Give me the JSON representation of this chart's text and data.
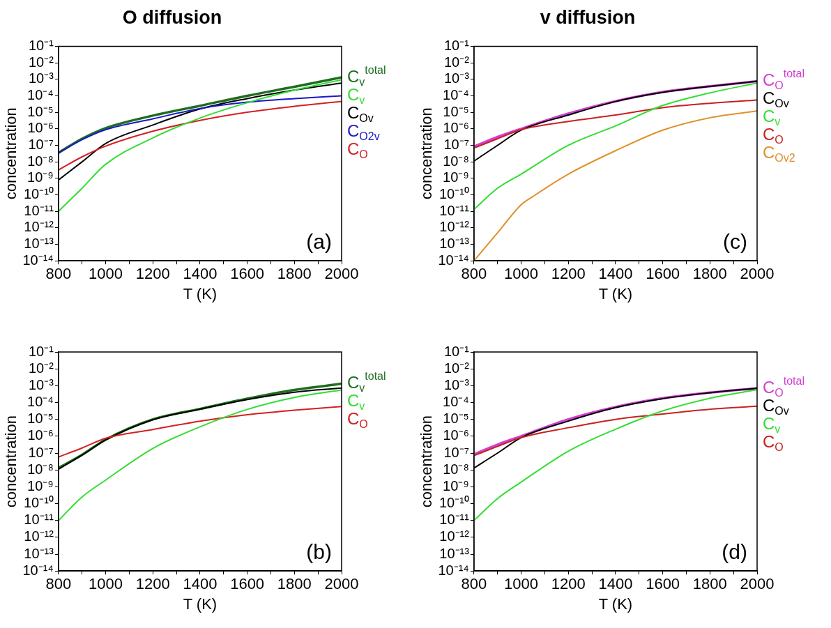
{
  "chart_data": [
    {
      "type": "line",
      "title": "O diffusion",
      "xlabel": "T (K)",
      "ylabel": "concentration",
      "log": "y",
      "xlim": [
        800,
        2000
      ],
      "xticks": [
        800,
        {
          "value": 900,
          "label": null
        },
        1000,
        {
          "value": 1100,
          "label": null
        },
        1200,
        {
          "value": 1300,
          "label": null
        },
        1400,
        {
          "value": 1500,
          "label": null
        },
        1600,
        {
          "value": 1700,
          "label": null
        },
        1800,
        {
          "value": 1900,
          "label": null
        },
        2000
      ],
      "ylim": [
        1e-14,
        0.1
      ],
      "yticks": [
        {
          "value": 1e-14,
          "label": "10⁻¹⁴"
        },
        {
          "value": 1e-13,
          "label": "10⁻¹³"
        },
        {
          "value": 1e-12,
          "label": "10⁻¹²"
        },
        {
          "value": 1e-11,
          "label": "10⁻¹¹"
        },
        {
          "value": 1e-10,
          "label": "10⁻¹⁰"
        },
        {
          "value": 1e-09,
          "label": "10⁻⁹"
        },
        {
          "value": 1e-08,
          "label": "10⁻⁸"
        },
        {
          "value": 1e-07,
          "label": "10⁻⁷"
        },
        {
          "value": 1e-06,
          "label": "10⁻⁶"
        },
        {
          "value": 1e-05,
          "label": "10⁻⁵"
        },
        {
          "value": 0.0001,
          "label": "10⁻⁴"
        },
        {
          "value": 0.001,
          "label": "10⁻³"
        },
        {
          "value": 0.01,
          "label": "10⁻²"
        },
        {
          "value": 0.1,
          "label": "10⁻¹"
        }
      ],
      "x": [
        800,
        900,
        1000,
        1200,
        1400,
        1600,
        1800,
        2000
      ],
      "annotations": [
        "(a)"
      ],
      "series": [
        {
          "name": "C$_{v}$$^{total}$",
          "color": "#1e6e1e",
          "values": [
            3.5e-08,
            2.5e-07,
            1.1e-06,
            6.3e-06,
            2.5e-05,
            0.0001,
            0.00035,
            0.0013
          ]
        },
        {
          "name": "C$_{Ov}$",
          "color": "#000000",
          "values": [
            7.9e-10,
            1e-08,
            1.3e-07,
            1.7e-06,
            1.6e-05,
            6.8e-05,
            0.00022,
            0.00058
          ]
        },
        {
          "name": "C$_{O2v}$",
          "color": "#1818c8",
          "values": [
            3.5e-08,
            2.2e-07,
            8.9e-07,
            4e-06,
            1.7e-05,
            4.1e-05,
            6.8e-05,
            0.0001
          ]
        },
        {
          "name": "C$_{O}$",
          "color": "#d42020",
          "values": [
            3.2e-09,
            2e-08,
            8.9e-08,
            7.1e-07,
            3.2e-06,
            1e-05,
            2.3e-05,
            4.6e-05
          ]
        },
        {
          "name": "C$_{v}$",
          "color": "#33dd33",
          "values": [
            1e-11,
            2.5e-10,
            7.1e-09,
            2.8e-07,
            4.5e-06,
            3.8e-05,
            0.00022,
            0.00093
          ]
        }
      ]
    },
    {
      "type": "line",
      "title": "v diffusion",
      "xlabel": "T (K)",
      "ylabel": "concentration",
      "log": "y",
      "xlim": [
        800,
        2000
      ],
      "xticks": [
        800,
        {
          "value": 900,
          "label": null
        },
        1000,
        {
          "value": 1100,
          "label": null
        },
        1200,
        {
          "value": 1300,
          "label": null
        },
        1400,
        {
          "value": 1500,
          "label": null
        },
        1600,
        {
          "value": 1700,
          "label": null
        },
        1800,
        {
          "value": 1900,
          "label": null
        },
        2000
      ],
      "ylim": [
        1e-14,
        0.1
      ],
      "yticks": [
        {
          "value": 1e-14,
          "label": "10⁻¹⁴"
        },
        {
          "value": 1e-13,
          "label": "10⁻¹³"
        },
        {
          "value": 1e-12,
          "label": "10⁻¹²"
        },
        {
          "value": 1e-11,
          "label": "10⁻¹¹"
        },
        {
          "value": 1e-10,
          "label": "10⁻¹⁰"
        },
        {
          "value": 1e-09,
          "label": "10⁻⁹"
        },
        {
          "value": 1e-08,
          "label": "10⁻⁸"
        },
        {
          "value": 1e-07,
          "label": "10⁻⁷"
        },
        {
          "value": 1e-06,
          "label": "10⁻⁶"
        },
        {
          "value": 1e-05,
          "label": "10⁻⁵"
        },
        {
          "value": 0.0001,
          "label": "10⁻⁴"
        },
        {
          "value": 0.001,
          "label": "10⁻³"
        },
        {
          "value": 0.01,
          "label": "10⁻²"
        },
        {
          "value": 0.1,
          "label": "10⁻¹"
        }
      ],
      "x": [
        800,
        900,
        1000,
        1200,
        1400,
        1600,
        1800,
        2000
      ],
      "annotations": [
        "(c)"
      ],
      "series": [
        {
          "name": "C$_{O}$$^{total}$",
          "color": "#d040d0",
          "values": [
            8.3e-08,
            3.2e-07,
            1e-06,
            8.3e-06,
            4.7e-05,
            0.00017,
            0.00038,
            0.00076
          ]
        },
        {
          "name": "C$_{Ov}$",
          "color": "#000000",
          "values": [
            1.1e-08,
            1e-07,
            8.3e-07,
            6.8e-06,
            4.5e-05,
            0.00016,
            0.00037,
            0.00076
          ]
        },
        {
          "name": "C$_{O}$",
          "color": "#c82020",
          "values": [
            6.8e-08,
            2.5e-07,
            8.9e-07,
            2.8e-06,
            6.8e-06,
            1.9e-05,
            3.5e-05,
            5.6e-05
          ]
        },
        {
          "name": "C$_{v}$",
          "color": "#33dd33",
          "values": [
            1.3e-11,
            2.5e-10,
            1.8e-09,
            1e-07,
            1.5e-06,
            2.6e-05,
            0.00015,
            0.0006
          ]
        },
        {
          "name": "C$_{Ov2}$",
          "color": "#e0902a",
          "x": [
            800,
            900,
            1000,
            1050,
            1200,
            1400,
            1600,
            1800,
            2000
          ],
          "values": [
            1e-14,
            5e-13,
            2.5e-11,
            7.9e-11,
            1.8e-09,
            4.7e-08,
            8.3e-07,
            4.7e-06,
            1.2e-05
          ]
        }
      ]
    },
    {
      "type": "line",
      "xlabel": "T (K)",
      "ylabel": "concentration",
      "log": "y",
      "xlim": [
        800,
        2000
      ],
      "xticks": [
        800,
        {
          "value": 900,
          "label": null
        },
        1000,
        {
          "value": 1100,
          "label": null
        },
        1200,
        {
          "value": 1300,
          "label": null
        },
        1400,
        {
          "value": 1500,
          "label": null
        },
        1600,
        {
          "value": 1700,
          "label": null
        },
        1800,
        {
          "value": 1900,
          "label": null
        },
        2000
      ],
      "ylim": [
        1e-14,
        0.1
      ],
      "yticks": [
        {
          "value": 1e-14,
          "label": "10⁻¹⁴"
        },
        {
          "value": 1e-13,
          "label": "10⁻¹³"
        },
        {
          "value": 1e-12,
          "label": "10⁻¹²"
        },
        {
          "value": 1e-11,
          "label": "10⁻¹¹"
        },
        {
          "value": 1e-10,
          "label": "10⁻¹⁰"
        },
        {
          "value": 1e-09,
          "label": "10⁻⁹"
        },
        {
          "value": 1e-08,
          "label": "10⁻⁸"
        },
        {
          "value": 1e-07,
          "label": "10⁻⁷"
        },
        {
          "value": 1e-06,
          "label": "10⁻⁶"
        },
        {
          "value": 1e-05,
          "label": "10⁻⁵"
        },
        {
          "value": 0.0001,
          "label": "10⁻⁴"
        },
        {
          "value": 0.001,
          "label": "10⁻³"
        },
        {
          "value": 0.01,
          "label": "10⁻²"
        },
        {
          "value": 0.1,
          "label": "10⁻¹"
        }
      ],
      "x": [
        800,
        900,
        1000,
        1200,
        1400,
        1600,
        1800,
        2000
      ],
      "annotations": [
        "(b)"
      ],
      "series": [
        {
          "name": "C$_{v}$$^{total}$",
          "color": "#1e6e1e",
          "values": [
            1.3e-08,
            7.9e-08,
            6.3e-07,
            1e-05,
            4.2e-05,
            0.00017,
            0.00056,
            0.0013
          ]
        },
        {
          "color": "#000000",
          "values": [
            1.1e-08,
            7.6e-08,
            6e-07,
            9.5e-06,
            4e-05,
            0.00015,
            0.00041,
            0.00072
          ]
        },
        {
          "name": "C$_{O}$",
          "color": "#d42020",
          "values": [
            5.9e-08,
            2e-07,
            7.6e-07,
            2.5e-06,
            7.9e-06,
            1.9e-05,
            3.5e-05,
            5.8e-05
          ]
        },
        {
          "name": "C$_{v}$",
          "color": "#33dd33",
          "values": [
            1e-11,
            2.5e-10,
            2.5e-09,
            1.9e-07,
            3.6e-06,
            3.9e-05,
            0.0002,
            0.00056
          ]
        }
      ]
    },
    {
      "type": "line",
      "xlabel": "T (K)",
      "ylabel": "concentration",
      "log": "y",
      "xlim": [
        800,
        2000
      ],
      "xticks": [
        800,
        {
          "value": 900,
          "label": null
        },
        1000,
        {
          "value": 1100,
          "label": null
        },
        1200,
        {
          "value": 1300,
          "label": null
        },
        1400,
        {
          "value": 1500,
          "label": null
        },
        1600,
        {
          "value": 1700,
          "label": null
        },
        1800,
        {
          "value": 1900,
          "label": null
        },
        2000
      ],
      "ylim": [
        1e-14,
        0.1
      ],
      "yticks": [
        {
          "value": 1e-14,
          "label": "10⁻¹⁴"
        },
        {
          "value": 1e-13,
          "label": "10⁻¹³"
        },
        {
          "value": 1e-12,
          "label": "10⁻¹²"
        },
        {
          "value": 1e-11,
          "label": "10⁻¹¹"
        },
        {
          "value": 1e-10,
          "label": "10⁻¹⁰"
        },
        {
          "value": 1e-09,
          "label": "10⁻⁹"
        },
        {
          "value": 1e-08,
          "label": "10⁻⁸"
        },
        {
          "value": 1e-07,
          "label": "10⁻⁷"
        },
        {
          "value": 1e-06,
          "label": "10⁻⁶"
        },
        {
          "value": 1e-05,
          "label": "10⁻⁵"
        },
        {
          "value": 0.0001,
          "label": "10⁻⁴"
        },
        {
          "value": 0.001,
          "label": "10⁻³"
        },
        {
          "value": 0.01,
          "label": "10⁻²"
        },
        {
          "value": 0.1,
          "label": "10⁻¹"
        }
      ],
      "x": [
        800,
        900,
        1000,
        1200,
        1400,
        1600,
        1800,
        2000
      ],
      "annotations": [
        "(d)"
      ],
      "series": [
        {
          "name": "C$_{O}$$^{total}$",
          "color": "#d040d0",
          "values": [
            8.5e-08,
            3.2e-07,
            1e-06,
            1e-05,
            5.4e-05,
            0.00018,
            0.00039,
            0.00071
          ]
        },
        {
          "name": "C$_{Ov}$",
          "color": "#000000",
          "values": [
            1.3e-08,
            1e-07,
            8.3e-07,
            7.9e-06,
            5e-05,
            0.00017,
            0.00038,
            0.00071
          ]
        },
        {
          "name": "C$_{O}$",
          "color": "#c82020",
          "values": [
            7.1e-08,
            2.5e-07,
            8.3e-07,
            3.2e-06,
            1e-05,
            2.1e-05,
            4e-05,
            6e-05
          ]
        },
        {
          "name": "C$_{v}$",
          "color": "#33dd33",
          "values": [
            1e-11,
            2e-10,
            1.9e-09,
            1.3e-07,
            2.6e-06,
            3.2e-05,
            0.00018,
            0.00058
          ]
        }
      ]
    }
  ]
}
